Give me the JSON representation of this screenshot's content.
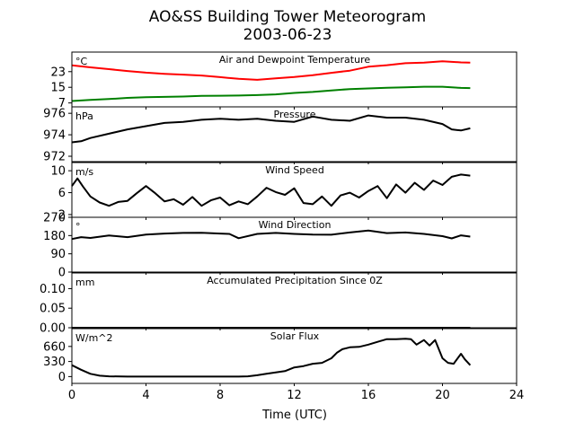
{
  "title_line1": "AO&SS Building Tower Meteorogram",
  "title_line2": "2003-06-23",
  "chart_data": {
    "type": "line",
    "xlabel": "Time (UTC)",
    "xlim": [
      0,
      24
    ],
    "xticks": [
      0,
      4,
      8,
      12,
      16,
      20,
      24
    ],
    "panels": [
      {
        "id": "temperature",
        "title": "Air and Dewpoint Temperature",
        "unit": "°C",
        "ylim": [
          5,
          33
        ],
        "yticks": [
          7,
          15,
          23
        ],
        "series": [
          {
            "color": "#ff0000",
            "x": [
              0,
              1,
              2,
              3,
              4,
              5,
              6,
              7,
              8,
              9,
              10,
              11,
              12,
              13,
              14,
              15,
              16,
              17,
              18,
              19,
              20,
              21,
              21.5
            ],
            "y": [
              26.2,
              25.2,
              24.3,
              23.3,
              22.5,
              21.9,
              21.5,
              21.0,
              20.2,
              19.3,
              18.8,
              19.6,
              20.3,
              21.2,
              22.4,
              23.5,
              25.5,
              26.3,
              27.3,
              27.6,
              28.3,
              27.7,
              27.6
            ]
          },
          {
            "color": "#008000",
            "x": [
              0,
              1,
              2,
              3,
              4,
              5,
              6,
              7,
              8,
              9,
              10,
              11,
              12,
              13,
              14,
              15,
              16,
              17,
              18,
              19,
              20,
              21,
              21.5
            ],
            "y": [
              8.0,
              8.6,
              9.0,
              9.6,
              9.9,
              10.1,
              10.3,
              10.6,
              10.7,
              10.8,
              11.0,
              11.4,
              12.1,
              12.6,
              13.4,
              14.1,
              14.4,
              14.8,
              15.0,
              15.3,
              15.3,
              14.7,
              14.6
            ]
          }
        ]
      },
      {
        "id": "pressure",
        "title": "Pressure",
        "unit": "hPa",
        "ylim": [
          971.5,
          976.6
        ],
        "yticks": [
          972,
          974,
          976
        ],
        "series": [
          {
            "color": "#000000",
            "x": [
              0,
              0.5,
              1,
              2,
              3,
              4,
              5,
              6,
              7,
              8,
              9,
              10,
              11,
              12,
              13,
              14,
              15,
              16,
              17,
              18,
              19,
              20,
              20.5,
              21,
              21.5
            ],
            "y": [
              973.3,
              973.4,
              973.7,
              974.1,
              974.5,
              974.8,
              975.1,
              975.2,
              975.4,
              975.5,
              975.4,
              975.5,
              975.3,
              975.2,
              975.7,
              975.4,
              975.3,
              975.8,
              975.6,
              975.6,
              975.4,
              975.0,
              974.5,
              974.4,
              974.6
            ]
          }
        ]
      },
      {
        "id": "wind-speed",
        "title": "Wind Speed",
        "unit": "m/s",
        "ylim": [
          1.5,
          11.5
        ],
        "yticks": [
          2,
          6,
          10
        ],
        "series": [
          {
            "color": "#000000",
            "x": [
              0,
              0.3,
              0.6,
              1,
              1.5,
              2,
              2.5,
              3,
              3.5,
              4,
              4.5,
              5,
              5.5,
              6,
              6.5,
              7,
              7.5,
              8,
              8.5,
              9,
              9.5,
              10,
              10.5,
              11,
              11.5,
              12,
              12.5,
              13,
              13.5,
              14,
              14.5,
              15,
              15.5,
              16,
              16.5,
              17,
              17.5,
              18,
              18.5,
              19,
              19.5,
              20,
              20.5,
              21,
              21.5
            ],
            "y": [
              7.2,
              8.6,
              7.1,
              5.3,
              4.2,
              3.6,
              4.3,
              4.5,
              5.9,
              7.2,
              5.9,
              4.4,
              4.8,
              3.8,
              5.2,
              3.6,
              4.6,
              5.1,
              3.7,
              4.4,
              3.9,
              5.3,
              6.9,
              6.1,
              5.6,
              6.8,
              4.1,
              3.9,
              5.3,
              3.6,
              5.5,
              6.0,
              5.1,
              6.3,
              7.2,
              5.0,
              7.5,
              6.0,
              7.8,
              6.5,
              8.2,
              7.4,
              8.9,
              9.3,
              9.1
            ]
          }
        ]
      },
      {
        "id": "wind-direction",
        "title": "Wind Direction",
        "unit": "°",
        "ylim": [
          0,
          270
        ],
        "yticks": [
          0,
          90,
          180,
          270
        ],
        "series": [
          {
            "color": "#000000",
            "x": [
              0,
              0.5,
              1,
              2,
              3,
              4,
              5,
              6,
              7,
              8,
              8.5,
              9,
              10,
              11,
              12,
              13,
              14,
              15,
              16,
              17,
              18,
              19,
              20,
              20.5,
              21,
              21.5
            ],
            "y": [
              163,
              172,
              168,
              180,
              172,
              185,
              190,
              193,
              194,
              190,
              188,
              167,
              188,
              193,
              188,
              185,
              184,
              195,
              205,
              192,
              195,
              188,
              177,
              166,
              181,
              175
            ]
          }
        ]
      },
      {
        "id": "precipitation",
        "title": "Accumulated Precipitation Since 0Z",
        "unit": "mm",
        "ylim": [
          0,
          0.14
        ],
        "yticks": [
          0.0,
          0.05,
          0.1
        ],
        "ytick_labels": [
          "0.00",
          "0.05",
          "0.10"
        ],
        "series": [
          {
            "color": "#000000",
            "x": [
              0,
              21.5
            ],
            "y": [
              0,
              0
            ]
          }
        ]
      },
      {
        "id": "solar",
        "title": "Solar Flux",
        "unit": "W/m^2",
        "ylim": [
          -150,
          1050
        ],
        "yticks": [
          0,
          330,
          660
        ],
        "series": [
          {
            "color": "#000000",
            "x": [
              0,
              0.5,
              1,
              1.5,
              2,
              3,
              4,
              5,
              6,
              7,
              8,
              9,
              9.5,
              10,
              10.5,
              11,
              11.5,
              12,
              12.5,
              13,
              13.5,
              14,
              14.3,
              14.6,
              15,
              15.5,
              16,
              16.5,
              17,
              17.5,
              18,
              18.3,
              18.6,
              19,
              19.3,
              19.6,
              20,
              20.3,
              20.6,
              21,
              21.2,
              21.5
            ],
            "y": [
              250,
              150,
              60,
              20,
              5,
              0,
              0,
              0,
              0,
              0,
              0,
              0,
              5,
              30,
              60,
              90,
              120,
              200,
              230,
              280,
              300,
              400,
              520,
              600,
              640,
              650,
              700,
              760,
              820,
              820,
              830,
              820,
              700,
              800,
              680,
              800,
              400,
              300,
              280,
              500,
              380,
              250
            ]
          }
        ]
      }
    ]
  }
}
